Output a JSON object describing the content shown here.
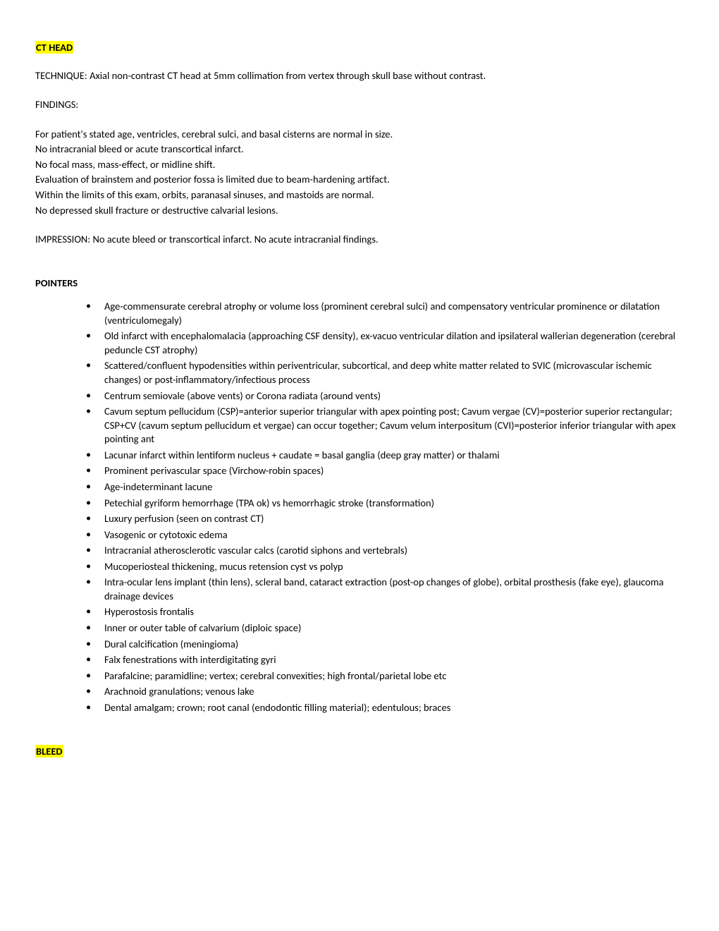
{
  "colors": {
    "highlight": "#ffff00",
    "text": "#000000",
    "background": "#ffffff"
  },
  "typography": {
    "font_family": "Calibri, 'Segoe UI', Arial, sans-serif",
    "base_fontsize": 14.5,
    "line_height": 1.35
  },
  "heading1": "CT HEAD",
  "technique_label": "TECHNIQUE: ",
  "technique_text": "Axial non-contrast CT head at 5mm collimation from vertex through skull base without contrast.",
  "findings_label": "FINDINGS:",
  "findings_lines": [
    "For patient's stated age, ventricles, cerebral sulci, and basal cisterns are normal in size.",
    "No intracranial bleed or acute transcortical infarct.",
    "No focal mass, mass-effect, or midline shift.",
    "Evaluation of brainstem and posterior fossa is limited due to beam-hardening artifact.",
    "Within the limits of this exam, orbits, paranasal sinuses, and mastoids are normal.",
    "No depressed skull fracture or destructive calvarial lesions."
  ],
  "impression_label": "IMPRESSION:  ",
  "impression_text": "No acute bleed or transcortical infarct. No acute intracranial findings.",
  "pointers_label": "POINTERS",
  "pointers": [
    "Age-commensurate cerebral atrophy or volume loss (prominent cerebral sulci) and compensatory ventricular prominence or dilatation (ventriculomegaly)",
    "Old infarct with encephalomalacia (approaching CSF density), ex-vacuo ventricular dilation and ipsilateral wallerian degeneration (cerebral peduncle CST atrophy)",
    "Scattered/confluent hypodensities within periventricular, subcortical, and deep white matter related to SVIC (microvascular ischemic changes) or post-inflammatory/infectious process",
    "Centrum semiovale (above vents) or Corona radiata (around vents)",
    "Cavum septum pellucidum (CSP)=anterior superior triangular with apex pointing post; Cavum vergae (CV)=posterior superior rectangular; CSP+CV (cavum septum pellucidum et vergae) can occur together; Cavum velum interpositum (CVI)=posterior inferior triangular with apex pointing ant",
    "Lacunar infarct within lentiform nucleus + caudate = basal ganglia (deep gray matter) or thalami",
    "Prominent perivascular space (Virchow-robin spaces)",
    "Age-indeterminant lacune",
    "Petechial gyriform hemorrhage (TPA ok) vs hemorrhagic stroke (transformation)",
    "Luxury perfusion (seen on contrast CT)",
    "Vasogenic or cytotoxic edema",
    "Intracranial atherosclerotic vascular calcs (carotid siphons and vertebrals)",
    "Mucoperiosteal thickening, mucus retension cyst vs polyp",
    "Intra-ocular lens implant (thin lens), scleral band, cataract extraction (post-op changes of globe), orbital prosthesis (fake eye), glaucoma drainage devices",
    "Hyperostosis frontalis",
    "Inner or outer table of calvarium (diploic space)",
    "Dural calcification (meningioma)",
    "Falx fenestrations with interdigitating gyri",
    "Parafalcine; paramidline; vertex; cerebral convexities; high frontal/parietal lobe etc",
    "Arachnoid granulations; venous lake",
    "Dental amalgam; crown; root canal (endodontic filling material); edentulous; braces"
  ],
  "heading2": "BLEED"
}
